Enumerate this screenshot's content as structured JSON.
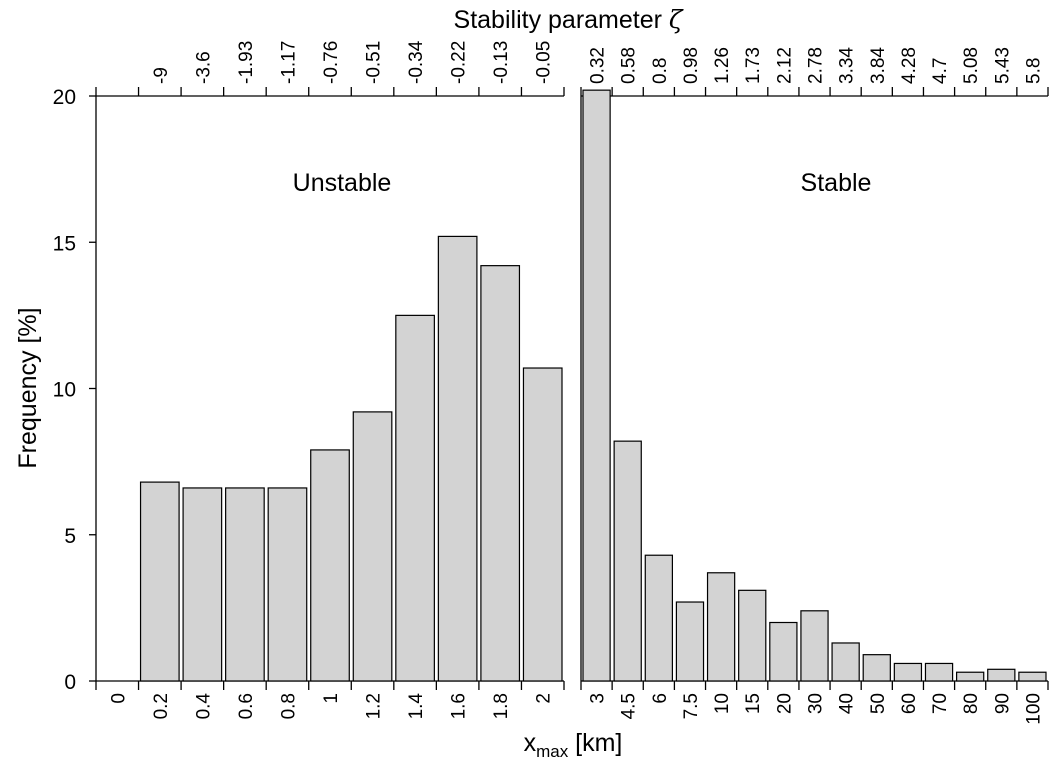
{
  "chart_data": {
    "type": "bar",
    "ylabel": "Frequency [%]",
    "xlabel_main": "x",
    "xlabel_sub": "max",
    "xlabel_unit": " [km]",
    "top_title_text": "Stability parameter ",
    "top_title_symbol": "ζ",
    "ylim": [
      0,
      20
    ],
    "yticks": [
      "0",
      "5",
      "10",
      "15",
      "20"
    ],
    "grid": false,
    "colors": {
      "bar_fill": "#d3d3d3",
      "bar_stroke": "#000000"
    },
    "panels": [
      {
        "label": "Unstable",
        "categories": [
          "0",
          "0.2",
          "0.4",
          "0.6",
          "0.8",
          "1",
          "1.2",
          "1.4",
          "1.6",
          "1.8",
          "2"
        ],
        "values": [
          0,
          6.8,
          6.6,
          6.6,
          6.6,
          7.9,
          9.2,
          12.5,
          15.2,
          14.2,
          10.7
        ],
        "top_labels": [
          "-9",
          "-3.6",
          "-1.93",
          "-1.17",
          "-0.76",
          "-0.51",
          "-0.34",
          "-0.22",
          "-0.13",
          "-0.05"
        ]
      },
      {
        "label": "Stable",
        "categories": [
          "3",
          "4.5",
          "6",
          "7.5",
          "10",
          "15",
          "20",
          "30",
          "40",
          "50",
          "60",
          "70",
          "80",
          "90",
          "100"
        ],
        "values": [
          20.2,
          8.2,
          4.3,
          2.7,
          3.7,
          3.1,
          2.0,
          2.4,
          1.3,
          0.9,
          0.6,
          0.6,
          0.3,
          0.4,
          0.3
        ],
        "top_labels": [
          "0.32",
          "0.58",
          "0.8",
          "0.98",
          "1.26",
          "1.73",
          "2.12",
          "2.78",
          "3.34",
          "3.84",
          "4.28",
          "4.7",
          "5.08",
          "5.43",
          "5.8"
        ]
      }
    ]
  }
}
